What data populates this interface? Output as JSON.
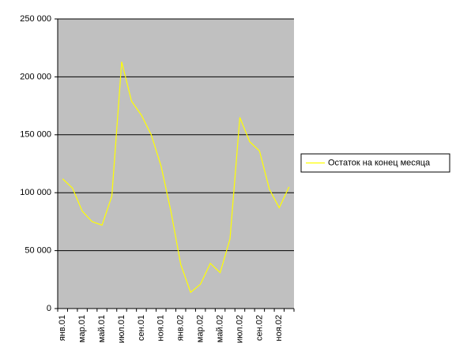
{
  "chart_data": {
    "type": "line",
    "categories": [
      "янв.01",
      null,
      "мар.01",
      null,
      "май.01",
      null,
      "июл.01",
      null,
      "сен.01",
      null,
      "ноя.01",
      null,
      "янв.02",
      null,
      "мар.02",
      null,
      "май.02",
      null,
      "июл.02",
      null,
      "сен.02",
      null,
      "ноя.02",
      null
    ],
    "series": [
      {
        "name": "Остаток на конец месяца",
        "color": "#ffff00",
        "values": [
          112000,
          104000,
          84000,
          75000,
          72000,
          97000,
          213000,
          179000,
          167000,
          150000,
          123000,
          84000,
          38000,
          14000,
          21000,
          39000,
          31000,
          60000,
          165000,
          144000,
          136000,
          103000,
          87000,
          105000
        ]
      }
    ],
    "ylim": [
      0,
      250000
    ],
    "yticks": [
      0,
      {
        "value": 50000,
        "label": "50 000"
      },
      {
        "value": 100000,
        "label": "100 000"
      },
      {
        "value": 150000,
        "label": "150 000"
      },
      {
        "value": 200000,
        "label": "200 000"
      },
      {
        "value": 250000,
        "label": "250 000"
      }
    ],
    "grid": true,
    "legend": "right",
    "background": "#c0c0c0"
  }
}
